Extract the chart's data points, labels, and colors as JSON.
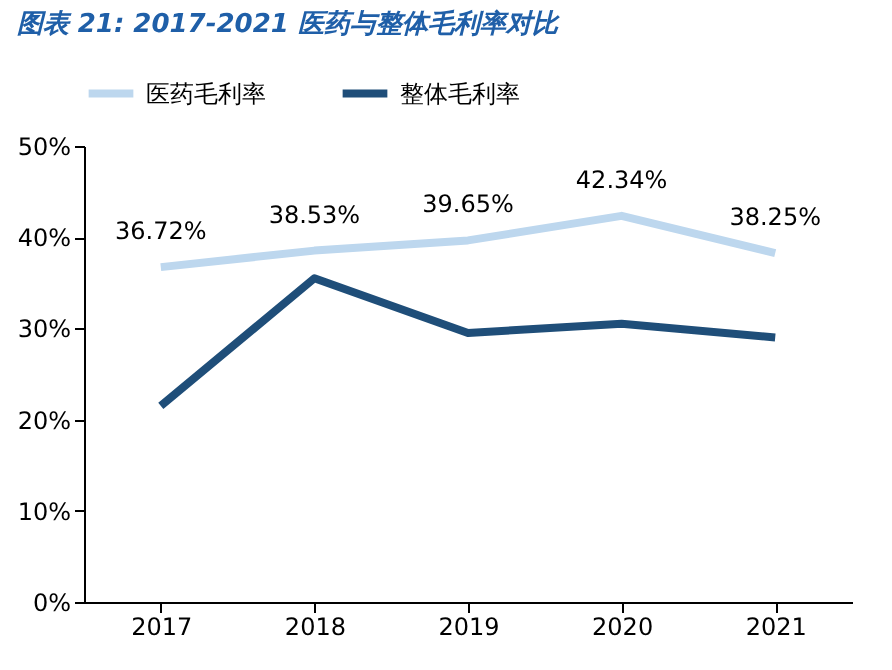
{
  "chart_data": {
    "type": "line",
    "title": "图表 21: 2017-2021 医药与整体毛利率对比",
    "categories": [
      "2017",
      "2018",
      "2019",
      "2020",
      "2021"
    ],
    "series": [
      {
        "name": "医药毛利率",
        "color": "#bdd7ee",
        "values": [
          36.72,
          38.53,
          39.65,
          42.34,
          38.25
        ],
        "value_labels": [
          "36.72%",
          "38.53%",
          "39.65%",
          "42.34%",
          "38.25%"
        ]
      },
      {
        "name": "整体毛利率",
        "color": "#1f4e79",
        "values": [
          21.5,
          35.5,
          29.5,
          30.5,
          29
        ]
      }
    ],
    "ylim": [
      0,
      50
    ],
    "yticks": [
      {
        "value": 0,
        "label": "0%"
      },
      {
        "value": 10,
        "label": "10%"
      },
      {
        "value": 20,
        "label": "20%"
      },
      {
        "value": 30,
        "label": "30%"
      },
      {
        "value": 40,
        "label": "40%"
      },
      {
        "value": 50,
        "label": "50%"
      }
    ],
    "grid": false,
    "legend": "top",
    "marker": "none"
  }
}
